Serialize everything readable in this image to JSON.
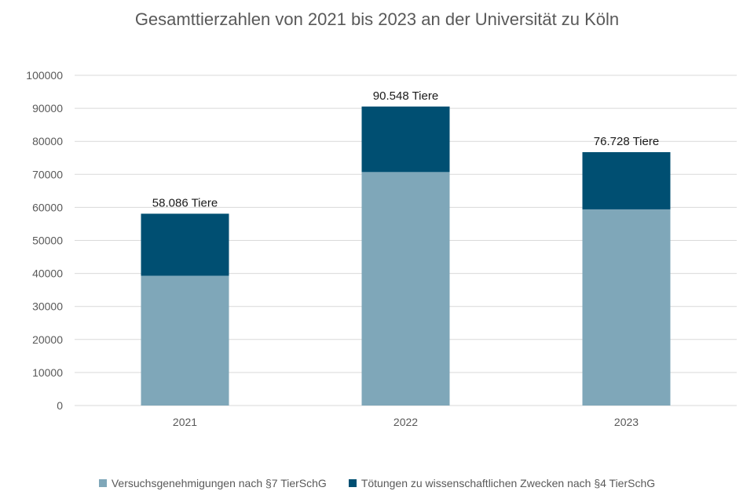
{
  "chart_data": {
    "type": "bar",
    "stacked": true,
    "title": "Gesamttierzahlen von 2021 bis 2023 an der Universität zu Köln",
    "categories": [
      "2021",
      "2022",
      "2023"
    ],
    "series": [
      {
        "name": "Versuchsgenehmigungen nach §7 TierSchG",
        "color": "#7fa7b9",
        "values": [
          39300,
          70700,
          59400
        ]
      },
      {
        "name": "Tötungen zu wissenschaftlichen Zwecken nach §4 TierSchG",
        "color": "#004f72",
        "values": [
          18786,
          19848,
          17328
        ]
      }
    ],
    "totals": [
      "58.086 Tiere",
      "90.548 Tiere",
      "76.728 Tiere"
    ],
    "total_values": [
      58086,
      90548,
      76728
    ],
    "ylim": [
      0,
      100000
    ],
    "yticks": [
      "0",
      "10000",
      "20000",
      "30000",
      "40000",
      "50000",
      "60000",
      "70000",
      "80000",
      "90000",
      "100000"
    ],
    "grid": true,
    "legend_position": "bottom"
  }
}
